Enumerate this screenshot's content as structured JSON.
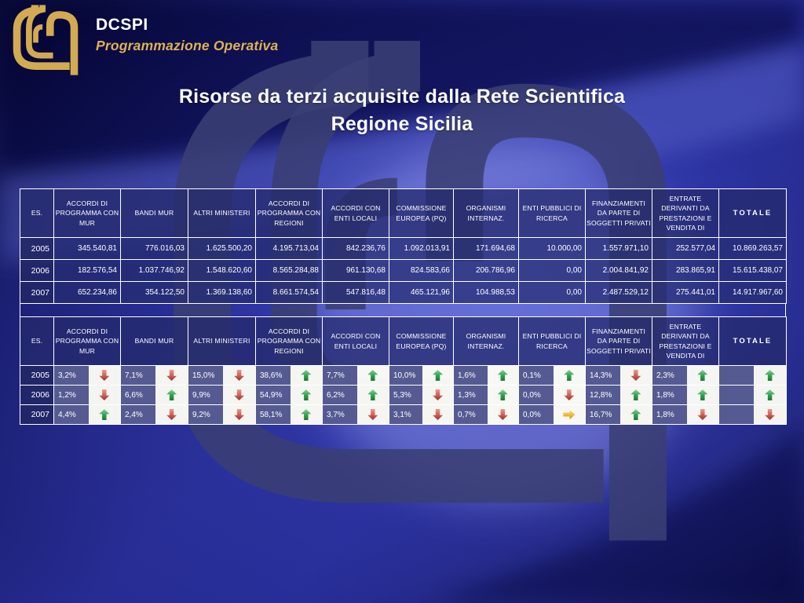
{
  "slide": {
    "org_acronym": "DCSPI",
    "org_subtitle": "Programmazione Operativa",
    "title_line1": "Risorse da terzi acquisite dalla Rete Scientifica",
    "title_line2": "Regione Sicilia"
  },
  "columns": [
    "ES.",
    "ACCORDI DI PROGRAMMA CON MUR",
    "BANDI MUR",
    "ALTRI MINISTERI",
    "ACCORDI DI PROGRAMMA CON REGIONI",
    "ACCORDI CON ENTI LOCALI",
    "COMMISSIONE EUROPEA (PQ)",
    "ORGANISMI INTERNAZ.",
    "ENTI PUBBLICI DI RICERCA",
    "FINANZIAMENTI DA PARTE DI SOGGETTI PRIVATI",
    "ENTRATE DERIVANTI DA PRESTAZIONI E VENDITA DI",
    "TOTALE"
  ],
  "amounts_table": {
    "rows": [
      {
        "year": "2005",
        "values": [
          "345.540,81",
          "776.016,03",
          "1.625.500,20",
          "4.195.713,04",
          "842.236,76",
          "1.092.013,91",
          "171.694,68",
          "10.000,00",
          "1.557.971,10",
          "252.577,04",
          "10.869.263,57"
        ]
      },
      {
        "year": "2006",
        "values": [
          "182.576,54",
          "1.037.746,92",
          "1.548.620,60",
          "8.565.284,88",
          "961.130,68",
          "824.583,66",
          "206.786,96",
          "0,00",
          "2.004.841,92",
          "283.865,91",
          "15.615.438,07"
        ]
      },
      {
        "year": "2007",
        "values": [
          "652.234,86",
          "354.122,50",
          "1.369.138,60",
          "8.661.574,54",
          "547.816,48",
          "465.121,96",
          "104.988,53",
          "0,00",
          "2.487.529,12",
          "275.441,01",
          "14.917.967,60"
        ]
      }
    ]
  },
  "trends_table": {
    "rows": [
      {
        "year": "2005",
        "cells": [
          {
            "value": "3,2%",
            "trend": "down"
          },
          {
            "value": "7,1%",
            "trend": "down"
          },
          {
            "value": "15,0%",
            "trend": "down"
          },
          {
            "value": "38,6%",
            "trend": "up"
          },
          {
            "value": "7,7%",
            "trend": "up"
          },
          {
            "value": "10,0%",
            "trend": "up"
          },
          {
            "value": "1,6%",
            "trend": "up"
          },
          {
            "value": "0,1%",
            "trend": "up"
          },
          {
            "value": "14,3%",
            "trend": "down"
          },
          {
            "value": "2,3%",
            "trend": "up"
          }
        ],
        "total_trend": "up"
      },
      {
        "year": "2006",
        "cells": [
          {
            "value": "1,2%",
            "trend": "down"
          },
          {
            "value": "6,6%",
            "trend": "up"
          },
          {
            "value": "9,9%",
            "trend": "down"
          },
          {
            "value": "54,9%",
            "trend": "up"
          },
          {
            "value": "6,2%",
            "trend": "up"
          },
          {
            "value": "5,3%",
            "trend": "down"
          },
          {
            "value": "1,3%",
            "trend": "up"
          },
          {
            "value": "0,0%",
            "trend": "down"
          },
          {
            "value": "12,8%",
            "trend": "up"
          },
          {
            "value": "1,8%",
            "trend": "up"
          }
        ],
        "total_trend": "up"
      },
      {
        "year": "2007",
        "cells": [
          {
            "value": "4,4%",
            "trend": "up"
          },
          {
            "value": "2,4%",
            "trend": "down"
          },
          {
            "value": "9,2%",
            "trend": "down"
          },
          {
            "value": "58,1%",
            "trend": "up"
          },
          {
            "value": "3,7%",
            "trend": "down"
          },
          {
            "value": "3,1%",
            "trend": "down"
          },
          {
            "value": "0,7%",
            "trend": "down"
          },
          {
            "value": "0,0%",
            "trend": "right"
          },
          {
            "value": "16,7%",
            "trend": "up"
          },
          {
            "value": "1,8%",
            "trend": "down"
          }
        ],
        "total_trend": "down"
      }
    ]
  },
  "colors": {
    "trend_up": "#2f9e4e",
    "trend_down": "#cd5b52",
    "trend_neutral": "#f0b42e",
    "logo_gold": "#d2aa52",
    "accent_navy": "#2a3075"
  }
}
